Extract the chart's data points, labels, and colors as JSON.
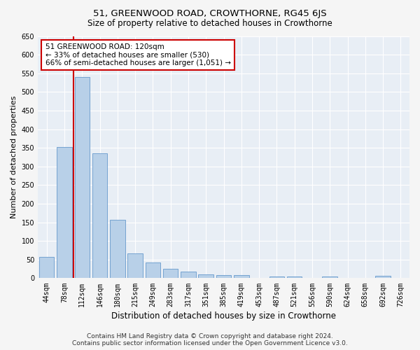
{
  "title": "51, GREENWOOD ROAD, CROWTHORNE, RG45 6JS",
  "subtitle": "Size of property relative to detached houses in Crowthorne",
  "xlabel": "Distribution of detached houses by size in Crowthorne",
  "ylabel": "Number of detached properties",
  "footer_line1": "Contains HM Land Registry data © Crown copyright and database right 2024.",
  "footer_line2": "Contains public sector information licensed under the Open Government Licence v3.0.",
  "categories": [
    "44sqm",
    "78sqm",
    "112sqm",
    "146sqm",
    "180sqm",
    "215sqm",
    "249sqm",
    "283sqm",
    "317sqm",
    "351sqm",
    "385sqm",
    "419sqm",
    "453sqm",
    "487sqm",
    "521sqm",
    "556sqm",
    "590sqm",
    "624sqm",
    "658sqm",
    "692sqm",
    "726sqm"
  ],
  "values": [
    57,
    353,
    540,
    336,
    156,
    66,
    42,
    25,
    17,
    10,
    9,
    9,
    1,
    5,
    5,
    0,
    5,
    0,
    0,
    6,
    0
  ],
  "bar_color": "#b8d0e8",
  "bar_edge_color": "#6699cc",
  "annotation_line1": "51 GREENWOOD ROAD: 120sqm",
  "annotation_line2": "← 33% of detached houses are smaller (530)",
  "annotation_line3": "66% of semi-detached houses are larger (1,051) →",
  "annotation_box_color": "#ffffff",
  "annotation_box_edge_color": "#cc0000",
  "vline_color": "#cc0000",
  "vline_x": 1.5,
  "ylim": [
    0,
    650
  ],
  "yticks": [
    0,
    50,
    100,
    150,
    200,
    250,
    300,
    350,
    400,
    450,
    500,
    550,
    600,
    650
  ],
  "bg_color": "#e8eef5",
  "grid_color": "#ffffff",
  "fig_bg_color": "#f5f5f5",
  "title_fontsize": 9.5,
  "subtitle_fontsize": 8.5,
  "xlabel_fontsize": 8.5,
  "ylabel_fontsize": 8,
  "tick_fontsize": 7,
  "annotation_fontsize": 7.5,
  "footer_fontsize": 6.5
}
